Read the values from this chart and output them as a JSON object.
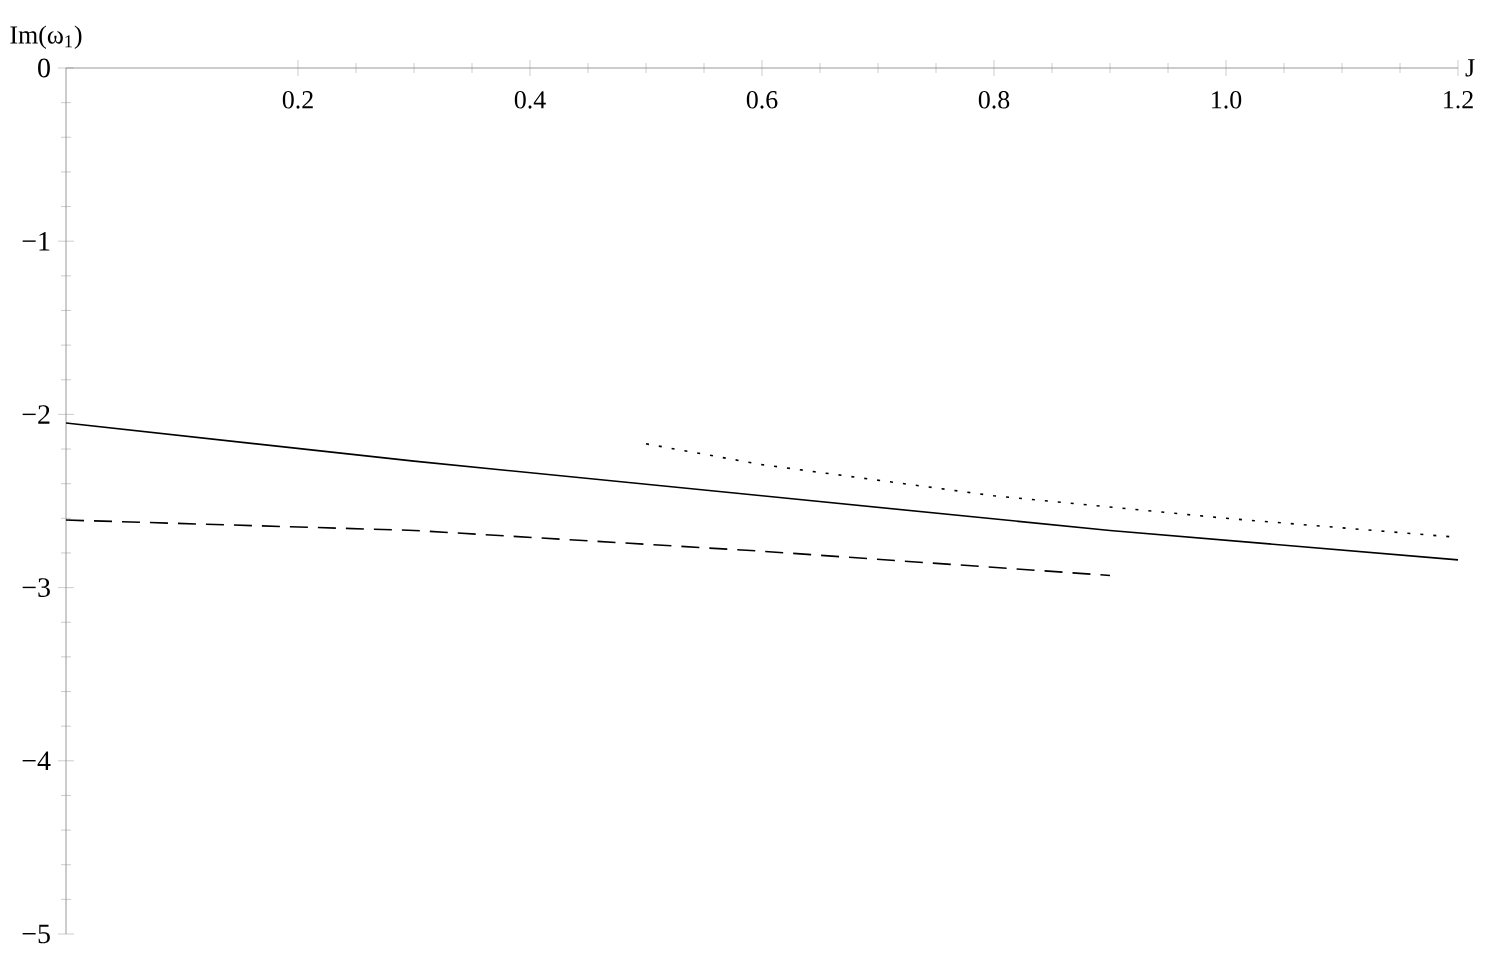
{
  "chart_data": {
    "type": "line",
    "xlabel": "J",
    "ylabel": "Im(ω$_{1}$)",
    "xlim": [
      0,
      1.2
    ],
    "ylim": [
      -5,
      0
    ],
    "xticks": [
      0.2,
      0.4,
      0.6,
      0.8,
      {
        "value": 1,
        "label": "1.0"
      },
      1.2
    ],
    "yticks": [
      0,
      {
        "value": -1,
        "label": "−1"
      },
      {
        "value": -2,
        "label": "−2"
      },
      {
        "value": -3,
        "label": "−3"
      },
      {
        "value": -4,
        "label": "−4"
      },
      {
        "value": -5,
        "label": "−5"
      }
    ],
    "marker": "none",
    "series": [
      {
        "color": "#000000",
        "line_style": "solid",
        "x": [
          0,
          0.3,
          0.6,
          0.9,
          1.2
        ],
        "values": [
          -2.05,
          -2.27,
          -2.47,
          -2.67,
          -2.84
        ]
      },
      {
        "color": "#000000",
        "line_style": "dashed",
        "x": [
          0,
          0.3,
          0.6,
          0.9
        ],
        "values": [
          -2.61,
          -2.67,
          -2.79,
          -2.93
        ]
      },
      {
        "color": "#000000",
        "line_style": "dotted",
        "x": [
          0.5,
          0.6,
          0.8,
          1.0,
          1.2
        ],
        "values": [
          -2.17,
          -2.29,
          -2.47,
          -2.6,
          -2.71
        ]
      }
    ]
  }
}
